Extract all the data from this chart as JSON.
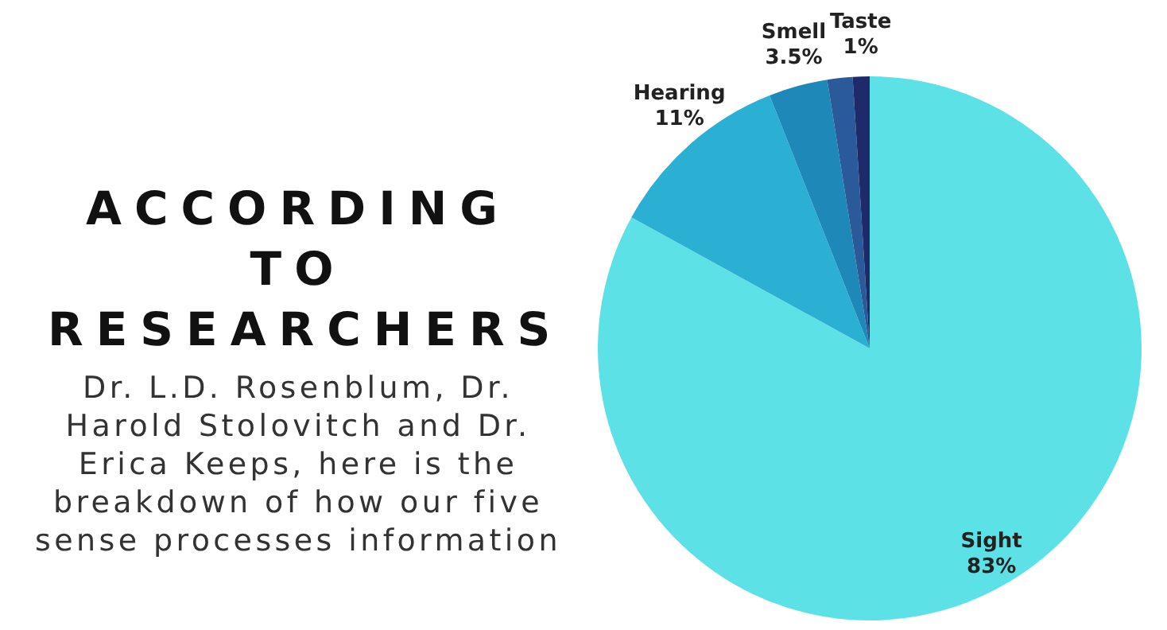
{
  "chart_data": {
    "type": "pie",
    "title": "ACCORDING TO RESEARCHERS",
    "subtitle": "Dr. L.D. Rosenblum, Dr. Harold Stolovitch and Dr. Erica Keeps, here is the breakdown of how our five sense processes information",
    "categories": [
      "Sight",
      "Hearing",
      "Smell",
      null,
      "Taste"
    ],
    "values": [
      83,
      11,
      3.5,
      1.5,
      1
    ],
    "value_labels": [
      "83%",
      "11%",
      "3.5%",
      null,
      "1%"
    ],
    "colors": [
      "#5ce1e6",
      "#2bb0d4",
      "#1e88b8",
      "#2b5a9a",
      "#1f2a6a"
    ],
    "legend": false
  }
}
